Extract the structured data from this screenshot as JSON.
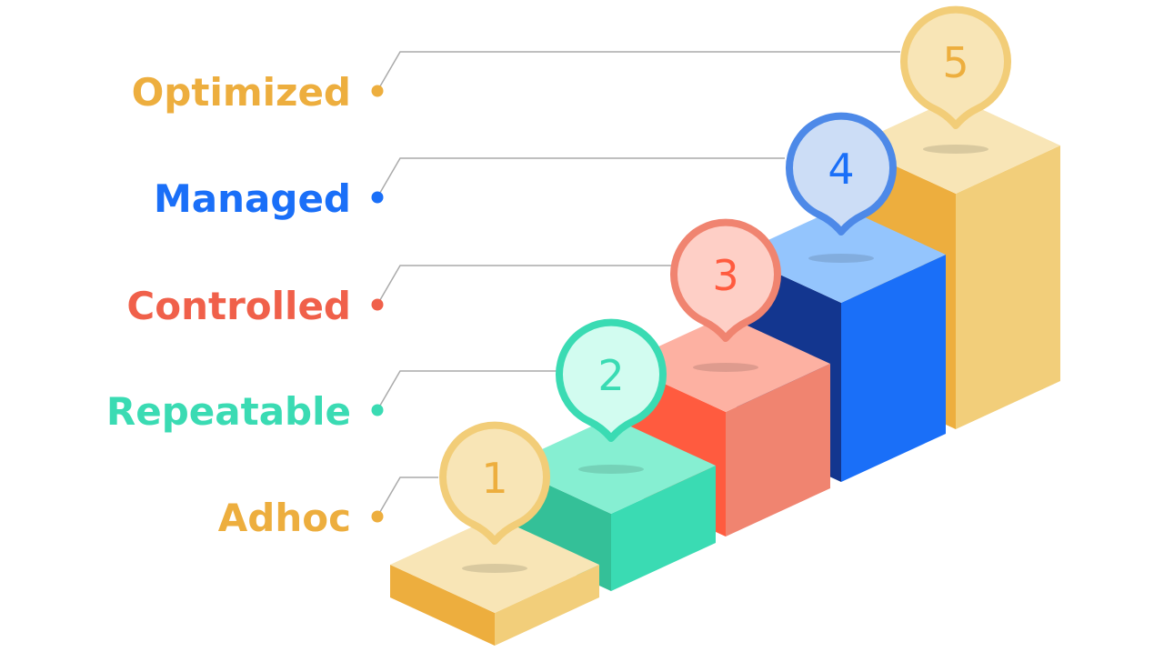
{
  "levels": [
    {
      "number": "1",
      "label": "Adhoc",
      "label_color": "#EDAE3E",
      "block": {
        "top": "#F8E5B6",
        "left": "#EDAE3E",
        "right": "#F2CE7A"
      },
      "pin": {
        "fill": "#F8E5B6",
        "stroke": "#F2CD78",
        "text": "#EDAE3E"
      }
    },
    {
      "number": "2",
      "label": "Repeatable",
      "label_color": "#3ADBB3",
      "block": {
        "top": "#86EFD2",
        "left": "#34C098",
        "right": "#3ADBB3"
      },
      "pin": {
        "fill": "#D2FCF0",
        "stroke": "#3ADBB3",
        "text": "#3ADBB3"
      }
    },
    {
      "number": "3",
      "label": "Controlled",
      "label_color": "#F0604A",
      "block": {
        "top": "#FDB1A2",
        "left": "#FF5B3F",
        "right": "#F08470"
      },
      "pin": {
        "fill": "#FECFC6",
        "stroke": "#F08470",
        "text": "#FF5B3F"
      }
    },
    {
      "number": "4",
      "label": "Managed",
      "label_color": "#1A6FF8",
      "block": {
        "top": "#94C5FD",
        "left": "#13368F",
        "right": "#1A6FF8"
      },
      "pin": {
        "fill": "#CCDDF6",
        "stroke": "#4D89E8",
        "text": "#1A6FF8"
      }
    },
    {
      "number": "5",
      "label": "Optimized",
      "label_color": "#EDAE3E",
      "block": {
        "top": "#F8E5B6",
        "left": "#EDAE3E",
        "right": "#F2CE7A"
      },
      "pin": {
        "fill": "#F8E5B6",
        "stroke": "#F2CD78",
        "text": "#EDAE3E"
      }
    }
  ],
  "connector_color": "#AAAAAA"
}
